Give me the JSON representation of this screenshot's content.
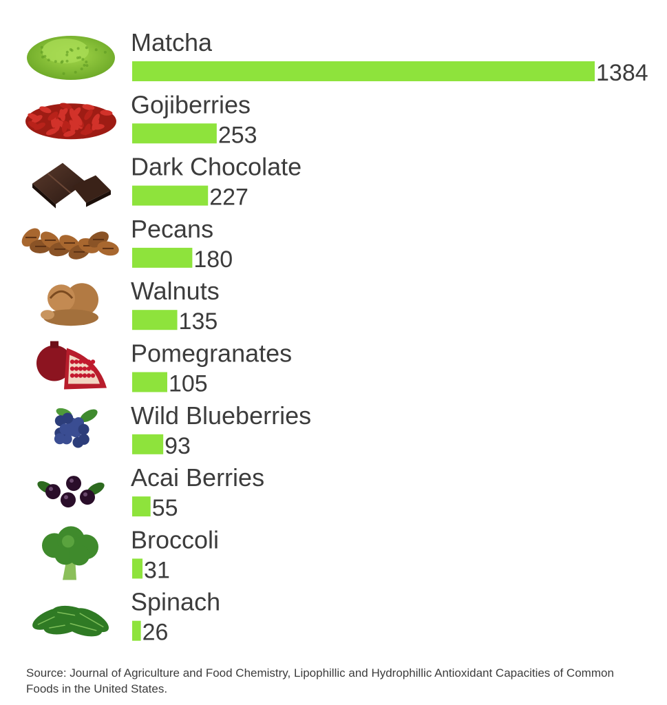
{
  "chart_data": {
    "type": "bar",
    "orientation": "horizontal",
    "categories": [
      "Matcha",
      "Gojiberries",
      "Dark Chocolate",
      "Pecans",
      "Walnuts",
      "Pomegranates",
      "Wild Blueberries",
      "Acai Berries",
      "Broccoli",
      "Spinach"
    ],
    "values": [
      1384,
      253,
      227,
      180,
      135,
      105,
      93,
      55,
      31,
      26
    ],
    "icons": [
      "matcha-powder-icon",
      "goji-berries-icon",
      "dark-chocolate-icon",
      "pecans-icon",
      "walnuts-icon",
      "pomegranate-icon",
      "blueberries-icon",
      "acai-berries-icon",
      "broccoli-icon",
      "spinach-icon"
    ],
    "bar_color": "#8ee33c",
    "text_color": "#3c3c3c",
    "title": "",
    "xlabel": "",
    "ylabel": "",
    "grid": false,
    "legend": "none"
  },
  "source": "Source: Journal of Agriculture and Food Chemistry, Lipophillic and Hydrophillic Antioxidant Capacities of Common Foods in the United States."
}
